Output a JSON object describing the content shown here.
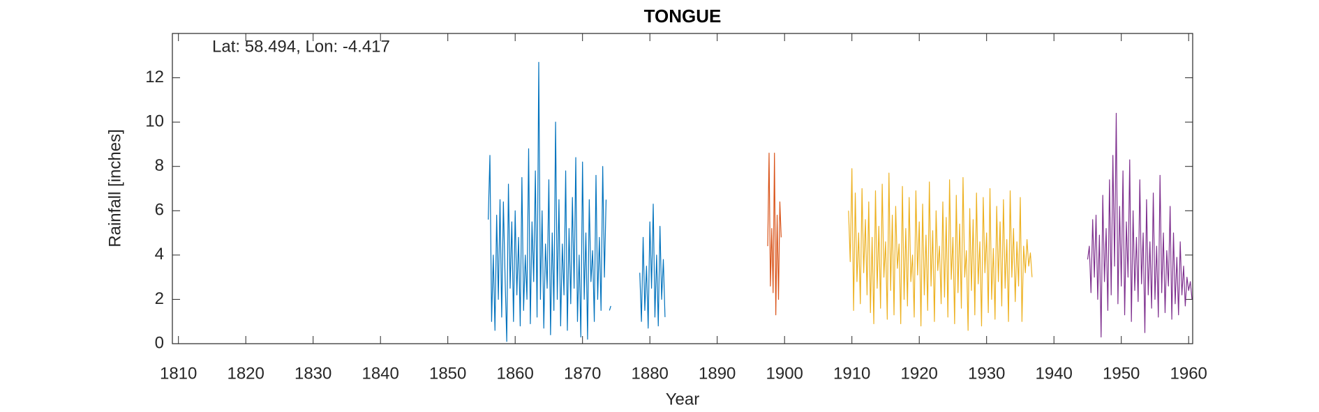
{
  "chart_data": {
    "type": "line",
    "title": "TONGUE",
    "annotation": "Lat: 58.494, Lon: -4.417",
    "xlabel": "Year",
    "ylabel": "Rainfall [inches]",
    "xlim": [
      1809.1,
      1960.6
    ],
    "xticks": [
      1810,
      1820,
      1830,
      1840,
      1850,
      1860,
      1870,
      1880,
      1890,
      1900,
      1910,
      1920,
      1930,
      1940,
      1950,
      1960
    ],
    "ylim": [
      0,
      14
    ],
    "yticks": [
      0,
      2,
      4,
      6,
      8,
      10,
      12
    ],
    "series": [
      {
        "color": "#0072bd",
        "x": [
          1856,
          1856.25,
          1856.5,
          1856.75,
          1857,
          1857.25,
          1857.5,
          1857.75,
          1858,
          1858.25,
          1858.5,
          1858.75,
          1859,
          1859.25,
          1859.5,
          1859.75,
          1860,
          1860.25,
          1860.5,
          1860.75,
          1861,
          1861.25,
          1861.5,
          1861.75,
          1862,
          1862.25,
          1862.5,
          1862.75,
          1863,
          1863.25,
          1863.5,
          1863.75,
          1864,
          1864.25,
          1864.5,
          1864.75,
          1865,
          1865.25,
          1865.5,
          1865.75,
          1866,
          1866.25,
          1866.5,
          1866.75,
          1867,
          1867.25,
          1867.5,
          1867.75,
          1868,
          1868.25,
          1868.5,
          1868.75,
          1869,
          1869.25,
          1869.5,
          1869.75,
          1870,
          1870.25,
          1870.5,
          1870.75,
          1871,
          1871.25,
          1871.5,
          1871.75,
          1872,
          1872.25,
          1872.5,
          1872.75,
          1873,
          1873.25,
          1873.5,
          1873.75,
          1874,
          1874.2,
          1876,
          1878.5,
          1878.75,
          1879,
          1879.25,
          1879.5,
          1879.75,
          1880,
          1880.25,
          1880.5,
          1880.75,
          1881,
          1881.25,
          1881.5,
          1881.75,
          1882,
          1882.25
        ],
        "values": [
          5.6,
          8.5,
          1.0,
          4.0,
          0.6,
          5.8,
          2.0,
          6.5,
          1.2,
          6.4,
          3.0,
          0.1,
          7.2,
          2.5,
          5.5,
          1.0,
          6.0,
          2.2,
          4.8,
          0.8,
          7.5,
          1.5,
          4.0,
          2.0,
          8.8,
          0.9,
          5.5,
          2.8,
          7.8,
          1.2,
          12.7,
          2.0,
          6.0,
          0.7,
          4.5,
          2.5,
          7.4,
          0.4,
          5.0,
          1.5,
          10.0,
          2.0,
          6.5,
          0.8,
          4.5,
          2.2,
          7.8,
          0.6,
          5.2,
          1.8,
          6.6,
          2.5,
          8.4,
          1.0,
          4.0,
          0.3,
          8.2,
          2.0,
          5.0,
          0.2,
          6.5,
          2.8,
          4.2,
          1.0,
          7.6,
          2.0,
          4.8,
          1.5,
          8.0,
          3.0,
          6.5,
          null,
          1.5,
          1.7,
          null,
          3.2,
          1.0,
          4.8,
          1.5,
          3.5,
          0.7,
          5.5,
          2.5,
          6.3,
          1.2,
          4.0,
          0.8,
          5.3,
          2.0,
          3.8,
          1.2
        ]
      },
      {
        "color": "#d95319",
        "x": [
          1897.5,
          1897.7,
          1897.9,
          1898.1,
          1898.3,
          1898.5,
          1898.7,
          1898.9,
          1899.1,
          1899.3,
          1899.5
        ],
        "values": [
          4.4,
          8.6,
          2.6,
          5.2,
          2.3,
          8.6,
          1.3,
          5.8,
          2.0,
          6.4,
          4.8
        ]
      },
      {
        "color": "#edb120",
        "x": [
          1909.5,
          1909.75,
          1910,
          1910.25,
          1910.5,
          1910.75,
          1911,
          1911.25,
          1911.5,
          1911.75,
          1912,
          1912.25,
          1912.5,
          1912.75,
          1913,
          1913.25,
          1913.5,
          1913.75,
          1914,
          1914.25,
          1914.5,
          1914.75,
          1915,
          1915.25,
          1915.5,
          1915.75,
          1916,
          1916.25,
          1916.5,
          1916.75,
          1917,
          1917.25,
          1917.5,
          1917.75,
          1918,
          1918.25,
          1918.5,
          1918.75,
          1919,
          1919.25,
          1919.5,
          1919.75,
          1920,
          1920.25,
          1920.5,
          1920.75,
          1921,
          1921.25,
          1921.5,
          1921.75,
          1922,
          1922.25,
          1922.5,
          1922.75,
          1923,
          1923.25,
          1923.5,
          1923.75,
          1924,
          1924.25,
          1924.5,
          1924.75,
          1925,
          1925.25,
          1925.5,
          1925.75,
          1926,
          1926.25,
          1926.5,
          1926.75,
          1927,
          1927.25,
          1927.5,
          1927.75,
          1928,
          1928.25,
          1928.5,
          1928.75,
          1929,
          1929.25,
          1929.5,
          1929.75,
          1930,
          1930.25,
          1930.5,
          1930.75,
          1931,
          1931.25,
          1931.5,
          1931.75,
          1932,
          1932.25,
          1932.5,
          1932.75,
          1933,
          1933.25,
          1933.5,
          1933.75,
          1934,
          1934.25,
          1934.5,
          1934.75,
          1935,
          1935.25,
          1935.5,
          1935.75,
          1936,
          1936.25,
          1936.5,
          1936.75
        ],
        "values": [
          6.0,
          3.7,
          7.9,
          1.5,
          6.8,
          2.8,
          5.0,
          1.8,
          7.0,
          3.2,
          5.6,
          2.2,
          6.4,
          1.4,
          4.8,
          0.9,
          6.9,
          2.5,
          5.3,
          1.6,
          7.2,
          3.0,
          4.6,
          1.1,
          7.7,
          2.4,
          5.8,
          1.3,
          6.2,
          3.4,
          4.5,
          0.9,
          7.1,
          2.0,
          5.2,
          1.7,
          6.6,
          2.8,
          4.0,
          1.2,
          6.9,
          3.1,
          5.5,
          0.8,
          6.3,
          2.2,
          4.9,
          1.5,
          7.3,
          2.6,
          5.1,
          1.0,
          6.0,
          3.3,
          4.4,
          1.8,
          6.4,
          2.1,
          5.7,
          1.2,
          7.4,
          2.9,
          4.8,
          0.9,
          6.7,
          2.3,
          5.4,
          1.6,
          7.5,
          3.0,
          4.2,
          0.6,
          6.1,
          2.4,
          5.6,
          1.3,
          6.8,
          2.7,
          4.6,
          0.8,
          6.6,
          3.2,
          5.0,
          1.4,
          7.0,
          2.0,
          4.3,
          1.1,
          6.2,
          2.8,
          5.5,
          1.7,
          6.5,
          2.5,
          4.7,
          1.0,
          6.9,
          3.0,
          5.2,
          1.9,
          4.6,
          2.6,
          6.6,
          1.0,
          4.4,
          3.2,
          4.7,
          3.5,
          4.1,
          3.0
        ]
      },
      {
        "color": "#7e2f8e",
        "x": [
          1945,
          1945.25,
          1945.5,
          1945.75,
          1946,
          1946.25,
          1946.5,
          1946.75,
          1947,
          1947.25,
          1947.5,
          1947.75,
          1948,
          1948.25,
          1948.5,
          1948.75,
          1949,
          1949.25,
          1949.5,
          1949.75,
          1950,
          1950.25,
          1950.5,
          1950.75,
          1951,
          1951.25,
          1951.5,
          1951.75,
          1952,
          1952.25,
          1952.5,
          1952.75,
          1953,
          1953.25,
          1953.5,
          1953.75,
          1954,
          1954.25,
          1954.5,
          1954.75,
          1955,
          1955.25,
          1955.5,
          1955.75,
          1956,
          1956.25,
          1956.5,
          1956.75,
          1957,
          1957.25,
          1957.5,
          1957.75,
          1958,
          1958.25,
          1958.5,
          1958.75,
          1959,
          1959.25,
          1959.5,
          1959.75,
          1960,
          1960.25,
          1960.5
        ],
        "values": [
          3.8,
          4.4,
          2.3,
          5.6,
          3.0,
          5.8,
          2.0,
          4.9,
          0.3,
          6.7,
          2.8,
          5.2,
          1.5,
          7.4,
          2.2,
          8.5,
          3.5,
          10.4,
          1.8,
          6.2,
          2.6,
          7.8,
          1.3,
          5.5,
          3.0,
          8.3,
          1.0,
          6.0,
          2.4,
          4.8,
          1.9,
          7.4,
          2.7,
          5.0,
          0.5,
          6.5,
          2.2,
          4.6,
          1.6,
          6.8,
          2.0,
          4.4,
          1.2,
          7.6,
          2.3,
          5.0,
          1.4,
          4.2,
          2.6,
          6.2,
          1.1,
          5.0,
          1.8,
          3.9,
          1.3,
          4.6,
          2.2,
          3.5,
          1.7,
          3.0,
          2.4,
          2.8,
          2.0
        ]
      }
    ]
  }
}
